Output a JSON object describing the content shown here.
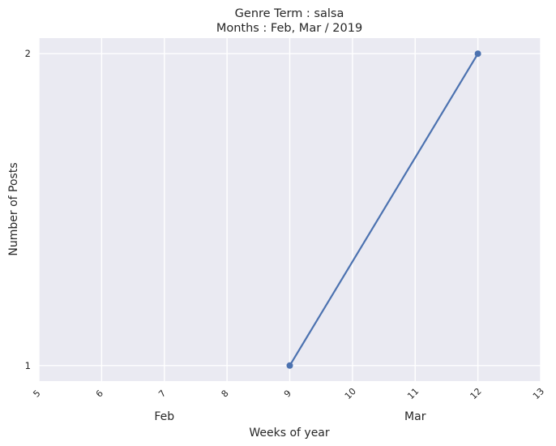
{
  "chart_data": {
    "type": "line",
    "title_lines": [
      "Genre Term : salsa",
      "Months : Feb, Mar / 2019"
    ],
    "xlabel": "Weeks of year",
    "ylabel": "Number of Posts",
    "x_ticks": [
      5,
      6,
      7,
      8,
      9,
      10,
      11,
      12,
      13
    ],
    "y_ticks": [
      1,
      2
    ],
    "xlim": [
      5,
      13
    ],
    "ylim": [
      0.95,
      2.05
    ],
    "month_labels": [
      {
        "label": "Feb",
        "x": 7
      },
      {
        "label": "Mar",
        "x": 11
      }
    ],
    "series": [
      {
        "x": [
          9,
          12
        ],
        "y": [
          1,
          2
        ],
        "color": "#4c72b0"
      }
    ],
    "grid": true,
    "background": "#eaeaf2"
  }
}
